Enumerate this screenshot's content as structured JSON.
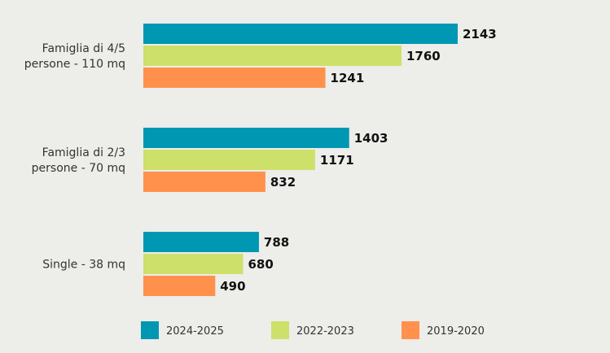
{
  "chart_data": {
    "type": "bar",
    "orientation": "horizontal",
    "categories": [
      [
        "Famiglia di 4/5",
        "persone - 110 mq"
      ],
      [
        "Famiglia di 2/3",
        "persone - 70 mq"
      ],
      [
        "Single - 38 mq"
      ]
    ],
    "series": [
      {
        "name": "2024-2025",
        "color": "#0097b2",
        "values": [
          2143,
          1403,
          788
        ]
      },
      {
        "name": "2022-2023",
        "color": "#cde06a",
        "values": [
          1760,
          1171,
          680
        ]
      },
      {
        "name": "2019-2020",
        "color": "#ff914d",
        "values": [
          1241,
          832,
          490
        ]
      }
    ],
    "title": "",
    "xlabel": "",
    "ylabel": "",
    "grid": false,
    "legend_position": "bottom"
  }
}
